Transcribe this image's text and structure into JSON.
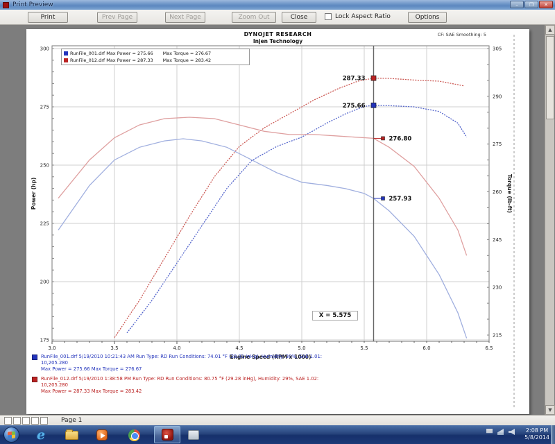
{
  "window": {
    "title": "Print Preview",
    "minimize": "–",
    "maximize": "❐",
    "close": "✕"
  },
  "toolbar": {
    "print": "Print",
    "prev_page": "Prev Page",
    "next_page": "Next Page",
    "zoom_out": "Zoom Out",
    "close": "Close",
    "lock_aspect_label": "Lock Aspect Ratio",
    "options": "Options"
  },
  "report": {
    "header1": "DYNOJET RESEARCH",
    "header2": "Injen Technology",
    "corner_note": "CF: SAE   Smoothing: 5"
  },
  "chart_data": {
    "type": "line",
    "title": "DYNOJET RESEARCH",
    "subtitle": "Injen Technology",
    "xlabel": "Engine Speed (RPM x 1000)",
    "ylabel_left": "Power (hp)",
    "ylabel_right": "Torque (lb-ft)",
    "x_range": [
      3.0,
      6.5
    ],
    "x_ticks": [
      "3.0",
      "3.5",
      "4.0",
      "4.5",
      "5.0",
      "5.5",
      "6.0",
      "6.5"
    ],
    "yleft_range": [
      175,
      300
    ],
    "yleft_ticks": [
      300,
      275,
      250,
      225,
      200,
      175
    ],
    "yright_range": [
      215,
      305
    ],
    "yright_ticks": [
      305,
      290,
      275,
      260,
      245,
      230,
      215
    ],
    "grid": true,
    "legend_position": "top-left",
    "cursor": {
      "x": 5.575,
      "label": "X = 5.575"
    },
    "series": [
      {
        "name": "RunFile_012.drf Power",
        "axis": "left",
        "color": "#cc5a55",
        "style": "dotted",
        "points": [
          [
            3.5,
            176
          ],
          [
            3.7,
            192
          ],
          [
            3.9,
            210
          ],
          [
            4.1,
            228
          ],
          [
            4.3,
            245
          ],
          [
            4.5,
            258
          ],
          [
            4.7,
            266
          ],
          [
            4.9,
            272
          ],
          [
            5.1,
            278
          ],
          [
            5.3,
            283
          ],
          [
            5.45,
            286
          ],
          [
            5.575,
            287.33
          ],
          [
            5.7,
            287.2
          ],
          [
            5.9,
            286.5
          ],
          [
            6.1,
            286
          ],
          [
            6.3,
            284
          ]
        ]
      },
      {
        "name": "RunFile_001.drf Power",
        "axis": "left",
        "color": "#5566cc",
        "style": "dotted",
        "points": [
          [
            3.6,
            178
          ],
          [
            3.8,
            192
          ],
          [
            4.0,
            208
          ],
          [
            4.2,
            224
          ],
          [
            4.4,
            240
          ],
          [
            4.6,
            252
          ],
          [
            4.8,
            258
          ],
          [
            5.0,
            262
          ],
          [
            5.2,
            268
          ],
          [
            5.35,
            272
          ],
          [
            5.5,
            275.2
          ],
          [
            5.575,
            275.66
          ],
          [
            5.7,
            275.5
          ],
          [
            5.9,
            275
          ],
          [
            6.1,
            273
          ],
          [
            6.25,
            268
          ],
          [
            6.32,
            262
          ]
        ]
      },
      {
        "name": "RunFile_012.drf Torque",
        "axis": "right",
        "color": "#dfa0a0",
        "style": "solid",
        "points": [
          [
            3.05,
            258
          ],
          [
            3.3,
            270
          ],
          [
            3.5,
            277
          ],
          [
            3.7,
            281
          ],
          [
            3.9,
            283
          ],
          [
            4.1,
            283.42
          ],
          [
            4.3,
            283
          ],
          [
            4.5,
            281
          ],
          [
            4.7,
            279
          ],
          [
            4.9,
            278
          ],
          [
            5.1,
            278
          ],
          [
            5.3,
            277.5
          ],
          [
            5.575,
            276.8
          ],
          [
            5.7,
            274
          ],
          [
            5.9,
            268
          ],
          [
            6.1,
            258
          ],
          [
            6.25,
            248
          ],
          [
            6.32,
            240
          ]
        ]
      },
      {
        "name": "RunFile_001.drf Torque",
        "axis": "right",
        "color": "#a0afdf",
        "style": "solid",
        "points": [
          [
            3.05,
            248
          ],
          [
            3.3,
            262
          ],
          [
            3.5,
            270
          ],
          [
            3.7,
            274
          ],
          [
            3.9,
            276
          ],
          [
            4.05,
            276.67
          ],
          [
            4.2,
            276
          ],
          [
            4.4,
            274
          ],
          [
            4.6,
            270
          ],
          [
            4.8,
            266
          ],
          [
            5.0,
            263
          ],
          [
            5.2,
            262
          ],
          [
            5.35,
            261
          ],
          [
            5.5,
            259.5
          ],
          [
            5.575,
            257.93
          ],
          [
            5.7,
            254
          ],
          [
            5.9,
            246
          ],
          [
            6.1,
            234
          ],
          [
            6.25,
            222
          ],
          [
            6.32,
            214
          ]
        ]
      }
    ],
    "markers": [
      {
        "label": "287.33",
        "axis": "left",
        "value": 287.33,
        "color": "#bb2222",
        "side": "left"
      },
      {
        "label": "275.66",
        "axis": "left",
        "value": 275.66,
        "color": "#2233bb",
        "side": "left"
      },
      {
        "label": "276.80",
        "axis": "right",
        "value": 276.8,
        "color": "#bb2222",
        "side": "right"
      },
      {
        "label": "257.93",
        "axis": "right",
        "value": 257.93,
        "color": "#2233bb",
        "side": "right"
      }
    ]
  },
  "legend": {
    "rows": [
      {
        "color": "#2233bb",
        "file_and_power": "RunFile_001.drf  Max Power = 275.66",
        "torque": "Max Torque = 276.67"
      },
      {
        "color": "#bb2222",
        "file_and_power": "RunFile_012.drf  Max Power = 287.33",
        "torque": "Max Torque = 283.42"
      }
    ]
  },
  "annotations": [
    {
      "color": "#2233bb",
      "line1": "RunFile_001.drf  5/19/2010 10:21:43 AM  Run Type: RD  Run Conditions: 74.01 °F (29.91 inHg), Humidity: 30%, SAE 1.01:",
      "line2": "10,205.280",
      "line3": "Max Power = 275.66   Max Torque = 276.67"
    },
    {
      "color": "#bb2222",
      "line1": "RunFile_012.drf  5/19/2010 1:38:58 PM  Run Type: RD  Run Conditions: 80.75 °F (29.28 inHg), Humidity: 29%, SAE 1.02:",
      "line2": "10,205.280",
      "line3": "Max Power = 287.33   Max Torque = 283.42"
    }
  ],
  "statusbar": {
    "page_label": "Page 1"
  },
  "taskbar": {
    "clock_time": "2:08 PM",
    "clock_date": "5/8/2014",
    "icons": [
      "start-orb",
      "internet-explorer",
      "windows-explorer",
      "media-player",
      "chrome",
      "dynojet-winpep",
      "generic-window"
    ]
  }
}
